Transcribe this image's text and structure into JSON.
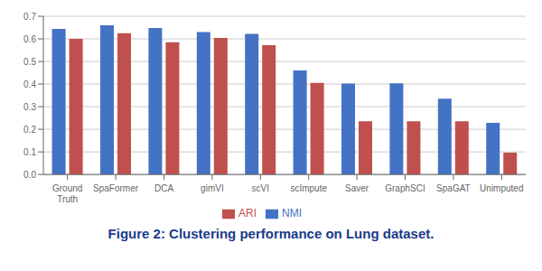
{
  "chart_data": {
    "type": "bar",
    "title": "Figure 2: Clustering performance on Lung dataset.",
    "categories": [
      "Ground\nTruth",
      "SpaFormer",
      "DCA",
      "gimVI",
      "scVI",
      "scImpute",
      "Saver",
      "GraphSCI",
      "SpaGAT",
      "Unimputed"
    ],
    "series": [
      {
        "name": "NMI",
        "color": "#4472C4",
        "values": [
          0.644,
          0.66,
          0.648,
          0.63,
          0.622,
          0.46,
          0.402,
          0.403,
          0.335,
          0.228
        ]
      },
      {
        "name": "ARI",
        "color": "#C0504D",
        "values": [
          0.6,
          0.625,
          0.585,
          0.604,
          0.572,
          0.405,
          0.235,
          0.235,
          0.235,
          0.097
        ]
      }
    ],
    "ylim": [
      0,
      0.7
    ],
    "yticks": [
      {
        "value": 0,
        "label": "0.0"
      },
      0.1,
      0.2,
      0.3,
      0.4,
      0.5,
      0.6,
      0.7
    ],
    "grid": true
  }
}
